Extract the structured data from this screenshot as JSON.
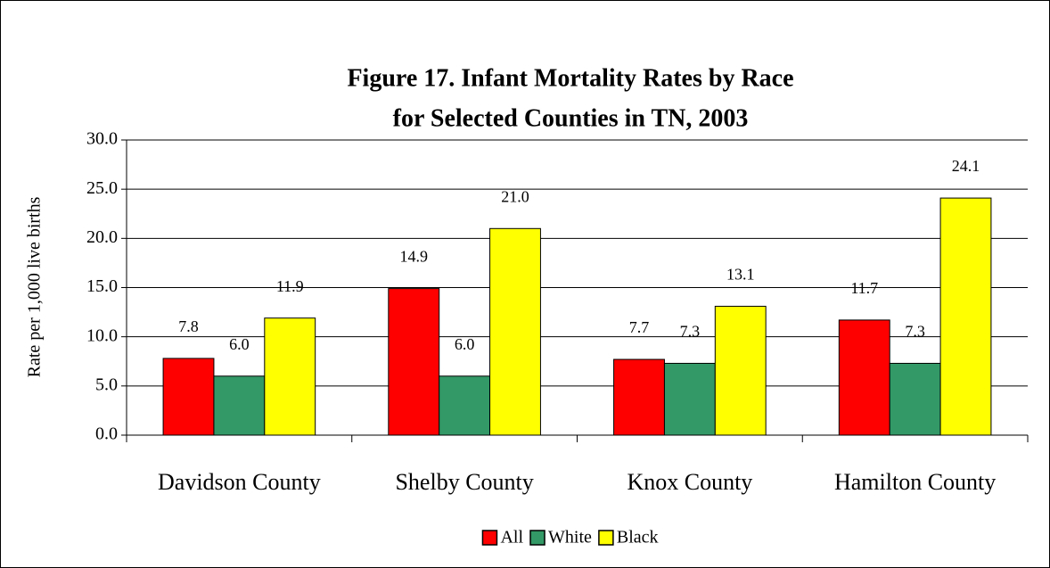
{
  "chart_data": {
    "type": "bar",
    "title": [
      "Figure 17. Infant Mortality Rates by Race",
      "for Selected Counties in TN, 2003"
    ],
    "y_label": "Rate per 1,000 live births",
    "categories": [
      "Davidson County",
      "Shelby County",
      "Knox County",
      "Hamilton County"
    ],
    "series": [
      {
        "name": "All",
        "color": "#ff0000",
        "values": [
          7.8,
          14.9,
          7.7,
          11.7
        ],
        "value_labels": [
          "7.8",
          "14.9",
          "7.7",
          "11.7"
        ]
      },
      {
        "name": "White",
        "color": "#339966",
        "values": [
          6.0,
          6.0,
          7.3,
          7.3
        ],
        "value_labels": [
          "6.0",
          "6.0",
          "7.3",
          "7.3"
        ]
      },
      {
        "name": "Black",
        "color": "#ffff00",
        "values": [
          11.9,
          21.0,
          13.1,
          24.1
        ],
        "value_labels": [
          "11.9",
          "21.0",
          "13.1",
          "24.1"
        ]
      }
    ],
    "ylim": [
      0,
      30
    ],
    "yticks": [
      {
        "value": 0,
        "label": "0.0"
      },
      {
        "value": 5,
        "label": "5.0"
      },
      {
        "value": 10,
        "label": "10.0"
      },
      {
        "value": 15,
        "label": "15.0"
      },
      {
        "value": 20,
        "label": "20.0"
      },
      {
        "value": 25,
        "label": "25.0"
      },
      {
        "value": 30,
        "label": "30.0"
      }
    ],
    "grid": true,
    "legend": "bottom"
  }
}
